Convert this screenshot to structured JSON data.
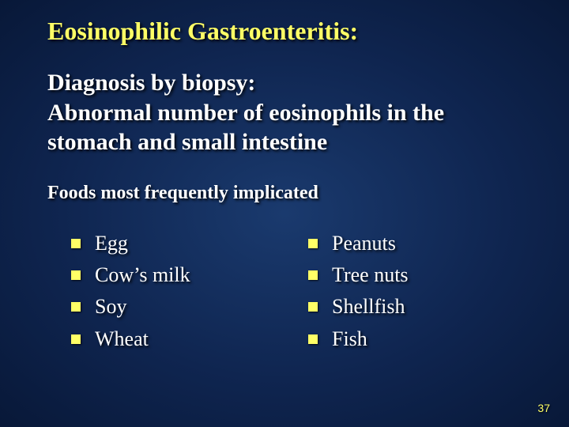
{
  "slide": {
    "title": "Eosinophilic Gastroenteritis:",
    "subtitle": "Diagnosis by biopsy:\nAbnormal number of eosinophils in the stomach and small intestine",
    "section_heading": "Foods most frequently implicated",
    "columns": {
      "left": [
        "Egg",
        "Cow’s milk",
        "Soy",
        "Wheat"
      ],
      "right": [
        "Peanuts",
        "Tree nuts",
        "Shellfish",
        "Fish"
      ]
    },
    "page_number": "37"
  },
  "styling": {
    "background_gradient": [
      "#1a3a6e",
      "#0f2550",
      "#081838"
    ],
    "title_color": "#ffff66",
    "text_color": "#ffffff",
    "bullet_color": "#ffff66",
    "page_number_color": "#ffff66",
    "title_fontsize": 32,
    "subtitle_fontsize": 30,
    "heading_fontsize": 24,
    "body_fontsize": 26,
    "font_family": "Times New Roman",
    "bullet_shape": "square",
    "bullet_size": 12,
    "shadow": "2px 2px 3px rgba(0,0,0,0.9)",
    "slide_width": 720,
    "slide_height": 540
  }
}
